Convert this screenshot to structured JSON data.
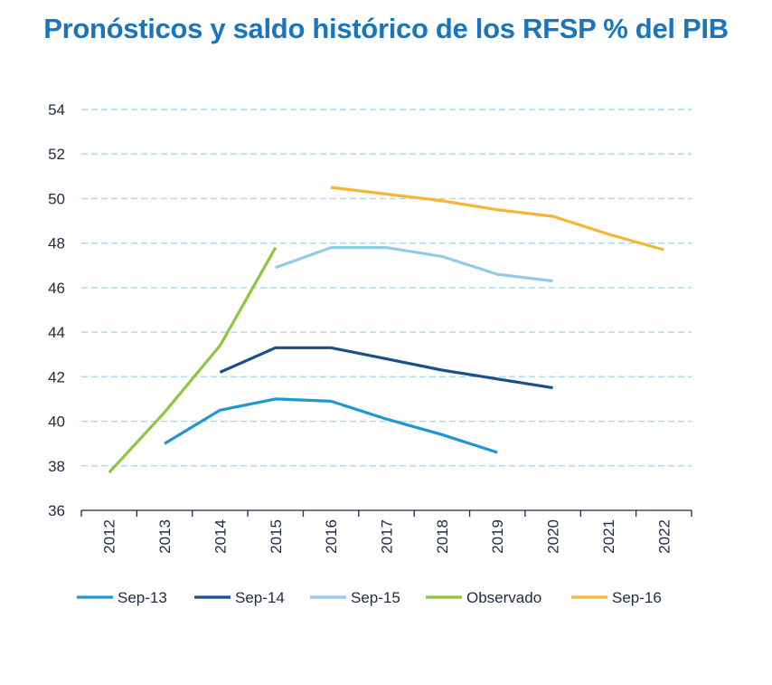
{
  "chart_data": {
    "type": "line",
    "title": "Pronósticos y saldo histórico de los RFSP % del PIB",
    "xlabel": "",
    "ylabel": "",
    "categories": [
      "2012",
      "2013",
      "2014",
      "2015",
      "2016",
      "2017",
      "2018",
      "2019",
      "2020",
      "2021",
      "2022"
    ],
    "ylim": [
      36,
      54
    ],
    "yticks": [
      36,
      38,
      40,
      42,
      44,
      46,
      48,
      50,
      52,
      54
    ],
    "grid": true,
    "legend_position": "bottom",
    "series": [
      {
        "name": "Sep-13",
        "color": "#1f97d4",
        "values": [
          null,
          39.0,
          40.5,
          41.0,
          40.9,
          40.1,
          39.4,
          38.6,
          null,
          null,
          null
        ]
      },
      {
        "name": "Sep-14",
        "color": "#1a4f8a",
        "values": [
          null,
          null,
          42.2,
          43.3,
          43.3,
          42.8,
          42.3,
          41.9,
          41.5,
          null,
          null
        ]
      },
      {
        "name": "Sep-15",
        "color": "#92cbe8",
        "values": [
          null,
          null,
          null,
          46.9,
          47.8,
          47.8,
          47.4,
          46.6,
          46.3,
          null,
          null
        ]
      },
      {
        "name": "Observado",
        "color": "#8dc63f",
        "values": [
          37.7,
          40.4,
          43.4,
          47.8,
          null,
          null,
          null,
          null,
          null,
          null,
          null
        ]
      },
      {
        "name": "Sep-16",
        "color": "#f7b538",
        "values": [
          null,
          null,
          null,
          null,
          50.5,
          50.2,
          49.9,
          49.5,
          49.2,
          48.4,
          47.7
        ]
      }
    ]
  }
}
